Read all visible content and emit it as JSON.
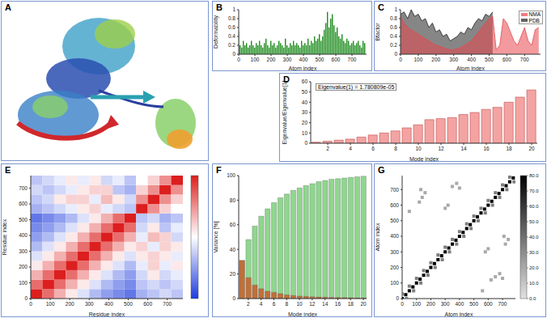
{
  "chart_data": [
    {
      "type": "image",
      "title": "A"
    },
    {
      "type": "bar",
      "title": "B",
      "x_label": "Atom index",
      "y_label": "Deformability",
      "color": "#1e8c1e",
      "x": [
        0,
        10,
        20,
        30,
        40,
        50,
        60,
        70,
        80,
        90,
        100,
        110,
        120,
        130,
        140,
        150,
        160,
        170,
        180,
        190,
        200,
        210,
        220,
        230,
        240,
        250,
        260,
        270,
        280,
        290,
        300,
        310,
        320,
        330,
        340,
        350,
        360,
        370,
        380,
        390,
        400,
        410,
        420,
        430,
        440,
        450,
        460,
        470,
        480,
        490,
        500,
        510,
        520,
        530,
        540,
        550,
        560,
        570,
        580,
        590,
        600,
        610,
        620,
        630,
        640,
        650,
        660,
        670,
        680,
        690,
        700,
        710,
        720,
        730,
        740,
        750,
        760,
        770,
        780
      ],
      "values": [
        0.5,
        0.2,
        0.15,
        0.3,
        0.2,
        0.25,
        0.15,
        0.2,
        0.3,
        0.2,
        0.15,
        0.25,
        0.2,
        0.3,
        0.2,
        0.15,
        0.25,
        0.35,
        0.2,
        0.15,
        0.3,
        0.2,
        0.25,
        0.15,
        0.2,
        0.3,
        0.25,
        0.2,
        0.15,
        0.35,
        0.2,
        0.15,
        0.25,
        0.2,
        0.3,
        0.2,
        0.25,
        0.2,
        0.15,
        0.3,
        0.2,
        0.25,
        0.2,
        0.35,
        0.2,
        0.3,
        0.25,
        0.4,
        0.3,
        0.35,
        0.45,
        0.3,
        0.4,
        0.55,
        0.7,
        0.95,
        0.6,
        0.8,
        0.9,
        0.65,
        0.5,
        0.6,
        0.4,
        0.35,
        0.45,
        0.3,
        0.25,
        0.35,
        0.3,
        0.2,
        0.25,
        0.3,
        0.2,
        0.25,
        0.3,
        0.2,
        0.15,
        0.3,
        0.25
      ],
      "xlim": [
        0,
        790
      ],
      "xticks": [
        0,
        100,
        200,
        300,
        400,
        500,
        600,
        700
      ],
      "ylim": [
        0,
        1
      ],
      "yticks": [
        0,
        0.2,
        0.4,
        0.6,
        0.8,
        1
      ]
    },
    {
      "type": "area",
      "title": "C",
      "x_label": "Atom index",
      "y_label": "Bfactor",
      "legend": "upper right",
      "x": [
        0,
        20,
        40,
        60,
        80,
        100,
        120,
        140,
        160,
        180,
        200,
        220,
        240,
        260,
        280,
        300,
        320,
        340,
        360,
        380,
        400,
        420,
        440,
        460,
        480,
        500,
        520,
        540,
        560,
        580,
        600,
        620,
        640,
        660,
        680,
        700,
        720,
        740,
        760,
        780
      ],
      "series": [
        {
          "name": "NMA",
          "color": "#e8474c",
          "values": [
            0.85,
            0.7,
            0.6,
            0.55,
            0.5,
            0.45,
            0.4,
            0.35,
            0.3,
            0.25,
            0.2,
            0.18,
            0.15,
            0.12,
            0.1,
            0.1,
            0.12,
            0.15,
            0.2,
            0.25,
            0.3,
            0.4,
            0.5,
            0.6,
            0.7,
            0.8,
            0.85,
            0.1,
            0.2,
            0.8,
            0.7,
            0.5,
            0.3,
            0.2,
            0.4,
            0.6,
            0.3,
            0.2,
            0.55,
            0.6
          ]
        },
        {
          "name": "PDB",
          "color": "#222222",
          "values": [
            0.9,
            0.95,
            0.8,
            1.0,
            0.85,
            0.9,
            0.75,
            0.8,
            0.6,
            0.7,
            0.5,
            0.55,
            0.4,
            0.45,
            0.3,
            0.35,
            0.4,
            0.5,
            0.45,
            0.6,
            0.55,
            0.7,
            0.8,
            0.75,
            0.9,
            0.85,
            0.95,
            null,
            null,
            null,
            null,
            null,
            null,
            null,
            null,
            null,
            null,
            null,
            null,
            null
          ]
        }
      ],
      "xlim": [
        0,
        790
      ],
      "xticks": [
        0,
        100,
        200,
        300,
        400,
        500,
        600,
        700
      ],
      "ylim": [
        0,
        1
      ],
      "yticks": [
        0,
        0.2,
        0.4,
        0.6,
        0.8,
        1
      ]
    },
    {
      "type": "bar",
      "title": "D",
      "x_label": "Mode index",
      "y_label": "Eigenvalue/Eigenvalue[1]",
      "annotation": "Eigenvalue(1) = 1.780809e-05",
      "color": "#f4a3a3",
      "x": [
        1,
        2,
        3,
        4,
        5,
        6,
        7,
        8,
        9,
        10,
        11,
        12,
        13,
        14,
        15,
        16,
        17,
        18,
        19,
        20
      ],
      "values": [
        1,
        2,
        3,
        4,
        6,
        8,
        10,
        12,
        15,
        18,
        23,
        24,
        25,
        28,
        30,
        33,
        35,
        40,
        45,
        52
      ],
      "xlim": [
        0.5,
        20.5
      ],
      "xticks": [
        2,
        4,
        6,
        8,
        10,
        12,
        14,
        16,
        18,
        20
      ],
      "ylim": [
        0,
        60
      ],
      "yticks": [
        0,
        10,
        20,
        30,
        40,
        50,
        60
      ]
    },
    {
      "type": "heatmap",
      "title": "E",
      "x_label": "Residue index",
      "y_label": "Residue index",
      "cell_edges": [
        0,
        60,
        120,
        180,
        240,
        300,
        360,
        420,
        480,
        540,
        600,
        660,
        720,
        780
      ],
      "cells": [
        [
          1,
          0.65,
          0.35,
          0.1,
          -0.15,
          -0.35,
          -0.5,
          -0.6,
          -0.7,
          -0.4,
          -0.3,
          -0.2,
          -0.3
        ],
        [
          0.65,
          1,
          0.65,
          0.35,
          0.1,
          -0.15,
          -0.35,
          -0.5,
          -0.6,
          -0.3,
          -0.2,
          -0.3,
          -0.2
        ],
        [
          0.35,
          0.65,
          1,
          0.65,
          0.35,
          0.1,
          -0.15,
          -0.35,
          -0.5,
          -0.2,
          0.1,
          -0.2,
          -0.1
        ],
        [
          0.1,
          0.35,
          0.65,
          1,
          0.65,
          0.35,
          0.1,
          -0.15,
          -0.35,
          -0.1,
          0.2,
          -0.1,
          0.1
        ],
        [
          -0.15,
          0.1,
          0.35,
          0.65,
          1,
          0.65,
          0.35,
          0.1,
          -0.15,
          0.1,
          0.2,
          0.1,
          -0.1
        ],
        [
          -0.35,
          -0.15,
          0.1,
          0.35,
          0.65,
          1,
          0.65,
          0.35,
          0.1,
          0.2,
          -0.1,
          0.2,
          0.1
        ],
        [
          -0.5,
          -0.35,
          -0.15,
          0.1,
          0.35,
          0.65,
          1,
          0.65,
          0.35,
          -0.1,
          0.3,
          0.2,
          -0.2
        ],
        [
          -0.6,
          -0.5,
          -0.35,
          -0.15,
          0.1,
          0.35,
          0.65,
          1,
          0.65,
          -0.2,
          0.1,
          -0.3,
          -0.1
        ],
        [
          -0.7,
          -0.6,
          -0.5,
          -0.35,
          -0.15,
          0.1,
          0.35,
          0.65,
          1,
          -0.3,
          -0.2,
          -0.4,
          -0.3
        ],
        [
          -0.4,
          -0.3,
          -0.2,
          -0.1,
          0.1,
          0.2,
          -0.1,
          -0.2,
          -0.3,
          1,
          0.5,
          0.2,
          0
        ],
        [
          -0.3,
          -0.2,
          0.1,
          0.2,
          0.2,
          -0.1,
          0.3,
          0.1,
          -0.2,
          0.5,
          1,
          0.5,
          0.2
        ],
        [
          -0.2,
          -0.3,
          -0.2,
          -0.1,
          0.1,
          0.2,
          0.2,
          -0.3,
          -0.4,
          0.2,
          0.5,
          1,
          0.5
        ],
        [
          -0.3,
          -0.2,
          -0.1,
          0.1,
          -0.1,
          0.1,
          -0.2,
          -0.1,
          -0.3,
          0,
          0.2,
          0.5,
          1
        ]
      ],
      "colorbar_range": [
        -1,
        1
      ],
      "xlim": [
        0,
        780
      ],
      "xticks": [
        0,
        100,
        200,
        300,
        400,
        500,
        600,
        700
      ],
      "ylim": [
        0,
        780
      ],
      "yticks": [
        0,
        100,
        200,
        300,
        400,
        500,
        600,
        700
      ]
    },
    {
      "type": "bar",
      "title": "F",
      "x_label": "Mode index",
      "y_label": "Variance [%]",
      "x": [
        1,
        2,
        3,
        4,
        5,
        6,
        7,
        8,
        9,
        10,
        11,
        12,
        13,
        14,
        15,
        16,
        17,
        18,
        19,
        20
      ],
      "series": [
        {
          "color": "#8fd68f",
          "values": [
            31,
            48,
            59,
            67,
            73,
            78,
            82,
            85,
            88,
            90,
            92,
            93.5,
            95,
            96,
            97,
            97.5,
            98,
            98.5,
            99,
            99.5
          ]
        },
        {
          "color": "#c0703a",
          "values": [
            31,
            17,
            11,
            8,
            6,
            5,
            4,
            3,
            2.5,
            2,
            1.8,
            1.5,
            1.3,
            1.2,
            1,
            0.9,
            0.8,
            0.7,
            0.6,
            0.5
          ]
        }
      ],
      "xlim": [
        0.5,
        20.5
      ],
      "xticks": [
        2,
        4,
        6,
        8,
        10,
        12,
        14,
        16,
        18,
        20
      ],
      "ylim": [
        0,
        100
      ],
      "yticks": [
        0,
        20,
        40,
        60,
        80,
        100
      ]
    },
    {
      "type": "scatter",
      "title": "G",
      "x_label": "Atom index",
      "y_label": "Atom index",
      "points": [
        [
          0,
          0,
          80
        ],
        [
          25,
          25,
          80
        ],
        [
          50,
          50,
          80
        ],
        [
          75,
          75,
          80
        ],
        [
          100,
          100,
          80
        ],
        [
          125,
          125,
          80
        ],
        [
          150,
          150,
          80
        ],
        [
          175,
          175,
          80
        ],
        [
          200,
          200,
          80
        ],
        [
          225,
          225,
          80
        ],
        [
          250,
          250,
          80
        ],
        [
          275,
          275,
          80
        ],
        [
          300,
          300,
          80
        ],
        [
          325,
          325,
          80
        ],
        [
          350,
          350,
          80
        ],
        [
          375,
          375,
          80
        ],
        [
          400,
          400,
          80
        ],
        [
          425,
          425,
          80
        ],
        [
          450,
          450,
          80
        ],
        [
          475,
          475,
          80
        ],
        [
          500,
          500,
          80
        ],
        [
          525,
          525,
          80
        ],
        [
          550,
          550,
          80
        ],
        [
          575,
          575,
          80
        ],
        [
          600,
          600,
          80
        ],
        [
          625,
          625,
          80
        ],
        [
          650,
          650,
          80
        ],
        [
          675,
          675,
          80
        ],
        [
          700,
          700,
          80
        ],
        [
          725,
          725,
          80
        ],
        [
          750,
          750,
          80
        ],
        [
          775,
          775,
          80
        ],
        [
          0,
          30,
          35
        ],
        [
          30,
          0,
          35
        ],
        [
          50,
          80,
          35
        ],
        [
          80,
          50,
          35
        ],
        [
          100,
          130,
          35
        ],
        [
          130,
          100,
          35
        ],
        [
          150,
          180,
          35
        ],
        [
          180,
          150,
          35
        ],
        [
          200,
          230,
          35
        ],
        [
          230,
          200,
          35
        ],
        [
          250,
          280,
          35
        ],
        [
          280,
          250,
          35
        ],
        [
          300,
          330,
          35
        ],
        [
          330,
          300,
          35
        ],
        [
          350,
          380,
          35
        ],
        [
          380,
          350,
          35
        ],
        [
          400,
          430,
          35
        ],
        [
          430,
          400,
          35
        ],
        [
          450,
          480,
          35
        ],
        [
          480,
          450,
          35
        ],
        [
          500,
          530,
          35
        ],
        [
          530,
          500,
          35
        ],
        [
          550,
          580,
          35
        ],
        [
          580,
          550,
          35
        ],
        [
          600,
          630,
          35
        ],
        [
          630,
          600,
          35
        ],
        [
          650,
          680,
          35
        ],
        [
          680,
          650,
          35
        ],
        [
          700,
          730,
          35
        ],
        [
          730,
          700,
          35
        ],
        [
          750,
          780,
          35
        ],
        [
          780,
          750,
          35
        ],
        [
          120,
          620,
          20
        ],
        [
          140,
          650,
          20
        ],
        [
          160,
          680,
          20
        ],
        [
          130,
          700,
          20
        ],
        [
          350,
          720,
          20
        ],
        [
          380,
          740,
          20
        ],
        [
          400,
          710,
          20
        ],
        [
          620,
          120,
          20
        ],
        [
          650,
          140,
          20
        ],
        [
          680,
          160,
          20
        ],
        [
          700,
          130,
          20
        ],
        [
          720,
          350,
          20
        ],
        [
          740,
          380,
          20
        ],
        [
          710,
          400,
          20
        ],
        [
          580,
          300,
          20
        ],
        [
          600,
          320,
          20
        ],
        [
          300,
          580,
          20
        ],
        [
          320,
          600,
          20
        ],
        [
          560,
          50,
          20
        ],
        [
          50,
          560,
          20
        ]
      ],
      "colorbar_range": [
        0,
        80
      ],
      "colorbar_ticks": [
        {
          "value": 0,
          "label": "0.0"
        },
        {
          "value": 10,
          "label": "10.0"
        },
        {
          "value": 20,
          "label": "20.0"
        },
        {
          "value": 30,
          "label": "30.0"
        },
        {
          "value": 40,
          "label": "40.0"
        },
        {
          "value": 50,
          "label": "50.0"
        },
        {
          "value": 60,
          "label": "60.0"
        },
        {
          "value": 70,
          "label": "70.0"
        },
        {
          "value": 80,
          "label": "80.0"
        }
      ],
      "xlim": [
        0,
        790
      ],
      "xticks": [
        0,
        100,
        200,
        300,
        400,
        500,
        600,
        700
      ],
      "ylim": [
        0,
        790
      ],
      "yticks": [
        0,
        100,
        200,
        300,
        400,
        500,
        600,
        700
      ]
    }
  ]
}
